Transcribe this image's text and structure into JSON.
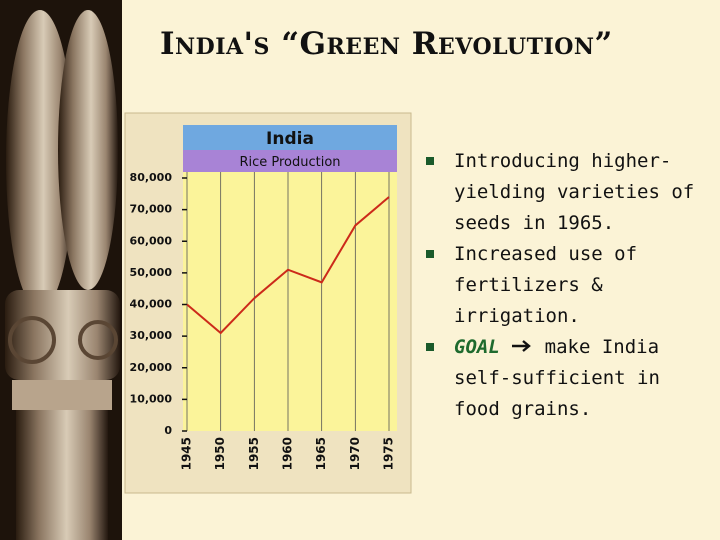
{
  "title": "India's “Green Revolution”",
  "bullets": [
    "Introducing higher-yielding varieties of seeds in 1965.",
    "Increased use of fertilizers & irrigation."
  ],
  "goal": {
    "label": "GOAL",
    "text": "make India self-sufficient in food grains."
  },
  "chart_data": {
    "type": "line",
    "title": "India",
    "subtitle": "Rice Production",
    "x": [
      1945,
      1950,
      1955,
      1960,
      1965,
      1970,
      1975
    ],
    "values": [
      40000,
      31000,
      42000,
      51000,
      47000,
      65000,
      74000
    ],
    "color": "#cc2a1a",
    "xlim": [
      1945,
      1975
    ],
    "xticks": [
      1945,
      1950,
      1955,
      1960,
      1965,
      1970,
      1975
    ],
    "ylim": [
      0,
      80000
    ],
    "yticks": [
      0,
      {
        "value": 10000,
        "label": "10,000"
      },
      {
        "value": 20000,
        "label": "20,000"
      },
      {
        "value": 30000,
        "label": "30,000"
      },
      {
        "value": 40000,
        "label": "40,000"
      },
      {
        "value": 50000,
        "label": "50,000"
      },
      {
        "value": 60000,
        "label": "60,000"
      },
      {
        "value": 70000,
        "label": "70,000"
      },
      {
        "value": 80000,
        "label": "80,000"
      }
    ],
    "grid": true
  }
}
